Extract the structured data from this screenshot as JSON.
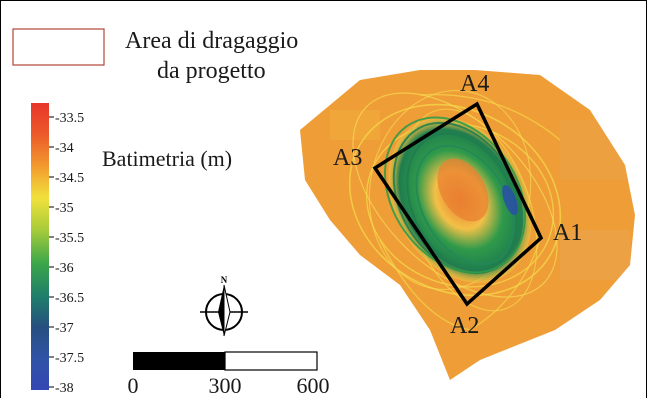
{
  "legend": {
    "area_label_line1": "Area di dragaggio",
    "area_label_line2": "da progetto",
    "swatch_border_color": "#b0463a"
  },
  "colorbar": {
    "title": "Batimetria (m)",
    "ticks": [
      "-33.5",
      "-34",
      "-34.5",
      "-35",
      "-35.5",
      "-36",
      "-36.5",
      "-37",
      "-37.5",
      "-38"
    ],
    "colors": [
      "#e8362a",
      "#ec6a2a",
      "#f29a2e",
      "#f1e13c",
      "#a9cc3a",
      "#3aa64a",
      "#1f7f6a",
      "#27507f",
      "#3052a6",
      "#3447b4"
    ]
  },
  "north_arrow": {
    "label": "N",
    "icon": "north-arrow-icon"
  },
  "scale_bar": {
    "labels": [
      "0",
      "300",
      "600"
    ]
  },
  "polygon": {
    "vertex_labels": [
      "A1",
      "A2",
      "A3",
      "A4"
    ],
    "stroke_color": "#000000"
  },
  "map_colors": {
    "background_orange": "#ef9d36",
    "center_orange": "#ea7a2e",
    "track_yellow": "#f4d648",
    "deep_green": "#1f8f4a",
    "deep_blue": "#2a4fa8"
  }
}
